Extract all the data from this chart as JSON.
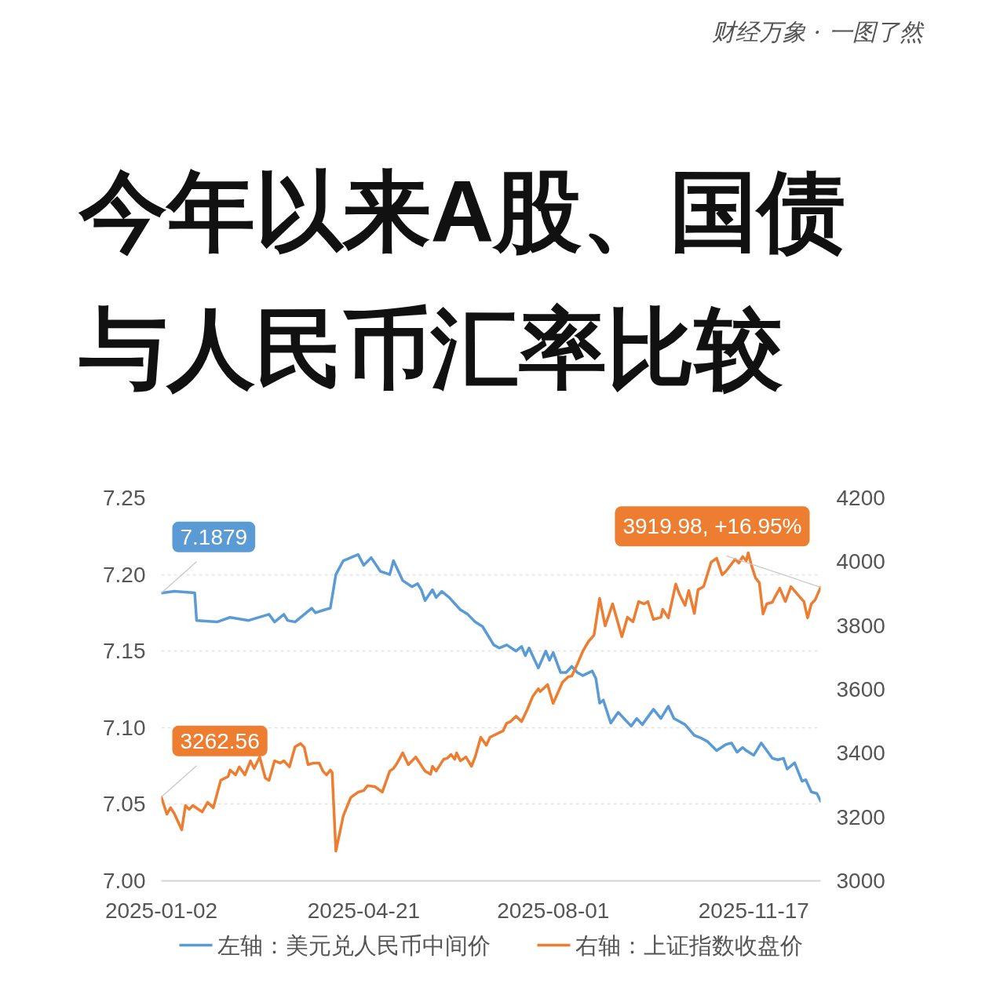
{
  "chart_data": {
    "type": "line",
    "title": "今年以来A股、国债与人民币汇率比较",
    "annotations": [
      "财经万象 · 一图了然"
    ],
    "xlim": [
      "2025-01-02",
      "2025-12-23"
    ],
    "xticks": [
      "2025-01-02",
      "2025-04-21",
      "2025-08-01",
      "2025-11-17"
    ],
    "ylim": [
      7.0,
      7.25
    ],
    "yticks": [
      {
        "value": 7,
        "label": "7.00"
      },
      7.05,
      {
        "value": 7.1,
        "label": "7.10"
      },
      7.15,
      {
        "value": 7.2,
        "label": "7.20"
      },
      7.25
    ],
    "y2lim": [
      3000,
      4200
    ],
    "y2ticks": [
      3000,
      3200,
      3400,
      3600,
      3800,
      4000,
      4200
    ],
    "grid": "y",
    "legend": "bottom",
    "line_style": "solid",
    "series": [
      {
        "name": "左轴：美元兑人民币中间价",
        "color": "#5b9bd5",
        "x": [
          "2025-01-02",
          "2025-01-09",
          "2025-01-20",
          "2025-01-21",
          "2025-02-01",
          "2025-02-08",
          "2025-02-18",
          "2025-03-01",
          "2025-03-04",
          "2025-03-09",
          "2025-03-11",
          "2025-03-15",
          "2025-03-20",
          "2025-03-24",
          "2025-03-26",
          "2025-03-31",
          "2025-04-03",
          "2025-04-06",
          "2025-04-10",
          "2025-04-18",
          "2025-04-21",
          "2025-04-25",
          "2025-04-30",
          "2025-05-05",
          "2025-05-07",
          "2025-05-12",
          "2025-05-17",
          "2025-05-20",
          "2025-05-22",
          "2025-05-24",
          "2025-05-28",
          "2025-05-30",
          "2025-06-02",
          "2025-06-06",
          "2025-06-12",
          "2025-06-16",
          "2025-06-20",
          "2025-06-24",
          "2025-06-30",
          "2025-07-03",
          "2025-07-07",
          "2025-07-12",
          "2025-07-15",
          "2025-07-17",
          "2025-07-19",
          "2025-07-24",
          "2025-07-28",
          "2025-07-30",
          "2025-08-01",
          "2025-08-05",
          "2025-08-08",
          "2025-08-11",
          "2025-08-14",
          "2025-08-17",
          "2025-08-22",
          "2025-08-24",
          "2025-08-26",
          "2025-08-28",
          "2025-09-01",
          "2025-09-05",
          "2025-09-12",
          "2025-09-15",
          "2025-09-18",
          "2025-09-24",
          "2025-09-28",
          "2025-10-02",
          "2025-10-05",
          "2025-10-11",
          "2025-10-16",
          "2025-10-20",
          "2025-10-23",
          "2025-10-28",
          "2025-11-02",
          "2025-11-05",
          "2025-11-08",
          "2025-11-11",
          "2025-11-13",
          "2025-11-17",
          "2025-11-21",
          "2025-11-27",
          "2025-11-30",
          "2025-12-03",
          "2025-12-05",
          "2025-12-09",
          "2025-12-13",
          "2025-12-15",
          "2025-12-18",
          "2025-12-21",
          "2025-12-23"
        ],
        "values": [
          7.1879,
          7.189,
          7.188,
          7.17,
          7.169,
          7.172,
          7.17,
          7.174,
          7.169,
          7.174,
          7.17,
          7.169,
          7.174,
          7.178,
          7.175,
          7.177,
          7.178,
          7.2,
          7.209,
          7.213,
          7.206,
          7.211,
          7.202,
          7.2,
          7.209,
          7.196,
          7.192,
          7.194,
          7.19,
          7.183,
          7.19,
          7.185,
          7.189,
          7.185,
          7.177,
          7.174,
          7.169,
          7.166,
          7.154,
          7.152,
          7.154,
          7.15,
          7.153,
          7.147,
          7.152,
          7.139,
          7.15,
          7.144,
          7.149,
          7.136,
          7.136,
          7.14,
          7.136,
          7.134,
          7.137,
          7.132,
          7.116,
          7.118,
          7.103,
          7.11,
          7.101,
          7.106,
          7.102,
          7.112,
          7.106,
          7.114,
          7.106,
          7.102,
          7.095,
          7.093,
          7.091,
          7.085,
          7.089,
          7.09,
          7.084,
          7.087,
          7.085,
          7.082,
          7.09,
          7.08,
          7.079,
          7.08,
          7.073,
          7.077,
          7.065,
          7.066,
          7.058,
          7.057,
          7.052
        ],
        "value_labels": [
          "7.1879",
          null,
          null,
          null,
          null,
          null,
          null,
          null,
          null,
          null,
          null,
          null,
          null,
          null,
          null,
          null,
          null,
          null,
          null,
          null,
          null,
          null,
          null,
          null,
          null,
          null,
          null,
          null,
          null,
          null,
          null,
          null,
          null,
          null,
          null,
          null,
          null,
          null,
          null,
          null,
          null,
          null,
          null,
          null,
          null,
          null,
          null,
          null,
          null,
          null,
          null,
          null,
          null,
          null,
          null,
          null,
          null,
          null,
          null,
          null,
          null,
          null,
          null,
          null,
          null,
          null,
          null,
          null,
          null,
          null,
          null,
          null,
          null,
          null,
          null,
          null,
          null,
          null,
          null,
          null,
          null,
          null,
          null,
          null,
          null,
          null,
          null,
          null,
          null
        ]
      },
      {
        "name": "右轴：上证指数收盘价",
        "color": "#ed7d31",
        "axis": "y2",
        "x": [
          "2025-01-02",
          "2025-01-05",
          "2025-01-07",
          "2025-01-09",
          "2025-01-13",
          "2025-01-15",
          "2025-01-17",
          "2025-01-19",
          "2025-01-24",
          "2025-01-27",
          "2025-01-30",
          "2025-02-03",
          "2025-02-07",
          "2025-02-08",
          "2025-02-11",
          "2025-02-13",
          "2025-02-16",
          "2025-02-19",
          "2025-02-21",
          "2025-02-24",
          "2025-02-27",
          "2025-03-01",
          "2025-03-04",
          "2025-03-07",
          "2025-03-09",
          "2025-03-12",
          "2025-03-15",
          "2025-03-18",
          "2025-03-20",
          "2025-03-22",
          "2025-03-25",
          "2025-03-28",
          "2025-03-30",
          "2025-04-01",
          "2025-04-03",
          "2025-04-04",
          "2025-04-06",
          "2025-04-10",
          "2025-04-14",
          "2025-04-18",
          "2025-04-21",
          "2025-04-23",
          "2025-04-27",
          "2025-05-01",
          "2025-05-05",
          "2025-05-07",
          "2025-05-09",
          "2025-05-12",
          "2025-05-15",
          "2025-05-19",
          "2025-05-24",
          "2025-05-27",
          "2025-05-28",
          "2025-05-30",
          "2025-06-03",
          "2025-06-05",
          "2025-06-07",
          "2025-06-09",
          "2025-06-10",
          "2025-06-12",
          "2025-06-15",
          "2025-06-18",
          "2025-06-20",
          "2025-06-23",
          "2025-06-26",
          "2025-06-28",
          "2025-07-05",
          "2025-07-07",
          "2025-07-09",
          "2025-07-12",
          "2025-07-15",
          "2025-07-18",
          "2025-07-21",
          "2025-07-24",
          "2025-07-25",
          "2025-07-29",
          "2025-08-01",
          "2025-08-06",
          "2025-08-09",
          "2025-08-11",
          "2025-08-14",
          "2025-08-17",
          "2025-08-20",
          "2025-08-23",
          "2025-08-26",
          "2025-08-29",
          "2025-09-02",
          "2025-09-07",
          "2025-09-10",
          "2025-09-13",
          "2025-09-16",
          "2025-09-19",
          "2025-09-21",
          "2025-09-24",
          "2025-09-28",
          "2025-09-29",
          "2025-10-02",
          "2025-10-06",
          "2025-10-08",
          "2025-10-11",
          "2025-10-13",
          "2025-10-16",
          "2025-10-18",
          "2025-10-21",
          "2025-10-25",
          "2025-10-28",
          "2025-10-31",
          "2025-11-02",
          "2025-11-07",
          "2025-11-09",
          "2025-11-11",
          "2025-11-13",
          "2025-11-14",
          "2025-11-16",
          "2025-11-18",
          "2025-11-20",
          "2025-11-22",
          "2025-11-24",
          "2025-11-27",
          "2025-11-28",
          "2025-12-01",
          "2025-12-04",
          "2025-12-07",
          "2025-12-12",
          "2025-12-14",
          "2025-12-16",
          "2025-12-18",
          "2025-12-20",
          "2025-12-23"
        ],
        "values": [
          3262.56,
          3209,
          3229,
          3211,
          3160,
          3236,
          3224,
          3236,
          3216,
          3246,
          3229,
          3315,
          3327,
          3347,
          3332,
          3357,
          3332,
          3376,
          3352,
          3388,
          3322,
          3315,
          3376,
          3369,
          3376,
          3357,
          3420,
          3430,
          3418,
          3364,
          3369,
          3369,
          3344,
          3332,
          3347,
          3339,
          3093,
          3204,
          3261,
          3278,
          3283,
          3298,
          3295,
          3278,
          3344,
          3352,
          3369,
          3401,
          3364,
          3388,
          3344,
          3334,
          3359,
          3344,
          3381,
          3384,
          3396,
          3381,
          3401,
          3376,
          3388,
          3359,
          3388,
          3450,
          3425,
          3450,
          3470,
          3494,
          3499,
          3516,
          3499,
          3536,
          3578,
          3602,
          3593,
          3615,
          3556,
          3622,
          3639,
          3642,
          3679,
          3720,
          3750,
          3770,
          3885,
          3799,
          3868,
          3765,
          3826,
          3812,
          3875,
          3868,
          3875,
          3819,
          3826,
          3851,
          3824,
          3930,
          3898,
          3863,
          3910,
          3838,
          3912,
          3922,
          3998,
          4011,
          3959,
          3970,
          4008,
          3996,
          4016,
          4003,
          4028,
          3984,
          3949,
          3934,
          3836,
          3868,
          3873,
          3885,
          3917,
          3875,
          3922,
          3888,
          3875,
          3824,
          3868,
          3880,
          3919.98
        ],
        "value_labels": [
          "3262.56",
          null,
          null,
          null,
          null,
          null,
          null,
          null,
          null,
          null,
          null,
          null,
          null,
          null,
          null,
          null,
          null,
          null,
          null,
          null,
          null,
          null,
          null,
          null,
          null,
          null,
          null,
          null,
          null,
          null,
          null,
          null,
          null,
          null,
          null,
          null,
          null,
          null,
          null,
          null,
          null,
          null,
          null,
          null,
          null,
          null,
          null,
          null,
          null,
          null,
          null,
          null,
          null,
          null,
          null,
          null,
          null,
          null,
          null,
          null,
          null,
          null,
          null,
          null,
          null,
          null,
          null,
          null,
          null,
          null,
          null,
          null,
          null,
          null,
          null,
          null,
          null,
          null,
          null,
          null,
          null,
          null,
          null,
          null,
          null,
          null,
          null,
          null,
          null,
          null,
          null,
          null,
          null,
          null,
          null,
          null,
          null,
          null,
          null,
          null,
          null,
          null,
          null,
          null,
          null,
          null,
          null,
          null,
          null,
          null,
          null,
          null,
          null,
          null,
          null,
          null,
          null,
          null,
          null,
          null,
          null,
          null,
          null,
          null,
          null,
          null,
          null,
          null,
          "3919.98, +16.95%"
        ]
      }
    ]
  }
}
